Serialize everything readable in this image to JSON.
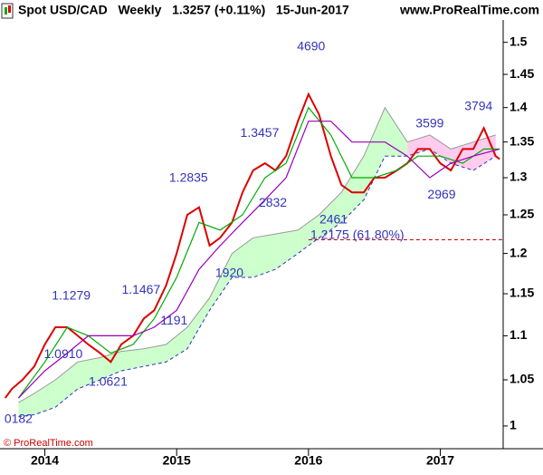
{
  "chart_data": {
    "type": "line",
    "title": "Spot USD/CAD   Weekly   1.3257 (+0.11%)   15-Jun-2017",
    "source": "www.ProRealTime.com",
    "footer": "© ProRealTime.com",
    "log_scale": true,
    "xlim": [
      2013.66,
      2017.47
    ],
    "xticks": [
      2014,
      2015,
      2016,
      2017
    ],
    "ylim": [
      0.98,
      1.53
    ],
    "yticks": [
      1,
      1.05,
      1.1,
      1.15,
      1.2,
      1.25,
      1.3,
      1.35,
      1.4,
      1.45,
      1.5
    ],
    "grid": false,
    "series": [
      {
        "color": "#dd0000",
        "x": [
          2013.7,
          2013.75,
          2013.83,
          2013.92,
          2014.0,
          2014.08,
          2014.17,
          2014.25,
          2014.33,
          2014.42,
          2014.5,
          2014.58,
          2014.67,
          2014.75,
          2014.83,
          2014.92,
          2015.0,
          2015.08,
          2015.17,
          2015.25,
          2015.33,
          2015.42,
          2015.5,
          2015.58,
          2015.67,
          2015.75,
          2015.83,
          2015.92,
          2016.0,
          2016.08,
          2016.17,
          2016.25,
          2016.33,
          2016.42,
          2016.5,
          2016.58,
          2016.67,
          2016.75,
          2016.83,
          2016.92,
          2017.0,
          2017.08,
          2017.17,
          2017.25,
          2017.33,
          2017.42,
          2017.45
        ],
        "values": [
          1.03,
          1.04,
          1.05,
          1.065,
          1.09,
          1.11,
          1.11,
          1.1,
          1.09,
          1.08,
          1.07,
          1.09,
          1.1,
          1.12,
          1.13,
          1.16,
          1.2,
          1.25,
          1.26,
          1.21,
          1.22,
          1.24,
          1.28,
          1.31,
          1.32,
          1.31,
          1.33,
          1.38,
          1.42,
          1.39,
          1.33,
          1.29,
          1.28,
          1.28,
          1.3,
          1.3,
          1.31,
          1.32,
          1.34,
          1.34,
          1.32,
          1.31,
          1.34,
          1.34,
          1.37,
          1.33,
          1.3257
        ]
      },
      {
        "color": "#00aa00",
        "x": [
          2013.8,
          2014.0,
          2014.17,
          2014.33,
          2014.5,
          2014.67,
          2014.83,
          2015.0,
          2015.17,
          2015.33,
          2015.5,
          2015.67,
          2015.83,
          2016.0,
          2016.17,
          2016.33,
          2016.5,
          2016.67,
          2016.83,
          2017.0,
          2017.17,
          2017.33,
          2017.45
        ],
        "values": [
          1.03,
          1.07,
          1.11,
          1.1,
          1.08,
          1.09,
          1.12,
          1.17,
          1.24,
          1.23,
          1.25,
          1.3,
          1.32,
          1.4,
          1.36,
          1.3,
          1.3,
          1.31,
          1.33,
          1.33,
          1.32,
          1.34,
          1.34
        ]
      },
      {
        "color": "#9900bb",
        "x": [
          2013.8,
          2014.0,
          2014.17,
          2014.33,
          2014.5,
          2014.67,
          2014.83,
          2015.0,
          2015.17,
          2015.33,
          2015.5,
          2015.67,
          2015.83,
          2016.0,
          2016.17,
          2016.33,
          2016.58,
          2016.75,
          2016.92,
          2017.08,
          2017.25,
          2017.45
        ],
        "values": [
          1.03,
          1.06,
          1.08,
          1.1,
          1.1,
          1.1,
          1.11,
          1.13,
          1.18,
          1.21,
          1.24,
          1.27,
          1.3,
          1.38,
          1.38,
          1.35,
          1.35,
          1.33,
          1.3,
          1.32,
          1.33,
          1.34
        ]
      }
    ],
    "cloud": {
      "x": [
        2013.8,
        2013.92,
        2014.08,
        2014.25,
        2014.42,
        2014.58,
        2014.75,
        2014.92,
        2015.08,
        2015.25,
        2015.42,
        2015.58,
        2015.75,
        2015.92,
        2016.08,
        2016.25,
        2016.42,
        2016.58,
        2016.75,
        2016.92,
        2017.08,
        2017.25,
        2017.42
      ],
      "lower": [
        1.01,
        1.012,
        1.02,
        1.04,
        1.05,
        1.06,
        1.065,
        1.07,
        1.085,
        1.13,
        1.17,
        1.17,
        1.18,
        1.2,
        1.22,
        1.24,
        1.27,
        1.33,
        1.33,
        1.34,
        1.32,
        1.31,
        1.33
      ],
      "upper": [
        1.025,
        1.035,
        1.05,
        1.07,
        1.075,
        1.082,
        1.085,
        1.09,
        1.11,
        1.145,
        1.2,
        1.22,
        1.225,
        1.23,
        1.25,
        1.28,
        1.33,
        1.4,
        1.35,
        1.36,
        1.34,
        1.35,
        1.36
      ],
      "fill_colors": [
        "#ccffcc",
        "#ccffcc",
        "#ccffcc",
        "#ccffcc",
        "#ccffcc",
        "#ccffcc",
        "#ccffcc",
        "#ccffcc",
        "#ccffcc",
        "#ccffcc",
        "#ccffcc",
        "#ccffcc",
        "#ccffcc",
        "#ccffcc",
        "#ccffcc",
        "#ccffcc",
        "#ccffcc",
        "#ccffcc",
        "#ffccee",
        "#ffccee",
        "#ffccee",
        "#ffccee"
      ],
      "lower_color": "#3333bb",
      "upper_color": "#999999"
    },
    "level": {
      "value": 1.2175,
      "from": 2016.0,
      "color": "#cc0000"
    },
    "annotations": [
      {
        "text": "4690",
        "x": 2016.02,
        "y": 1.493,
        "color": "#3333bb"
      },
      {
        "text": "1.3457",
        "x": 2015.63,
        "y": 1.362,
        "color": "#3333bb"
      },
      {
        "text": "1.2835",
        "x": 2015.09,
        "y": 1.299,
        "color": "#3333bb"
      },
      {
        "text": "2832",
        "x": 2015.73,
        "y": 1.265,
        "color": "#3333bb"
      },
      {
        "text": "2461",
        "x": 2016.19,
        "y": 1.243,
        "color": "#3333bb"
      },
      {
        "text": "1.2175 (61.80%)",
        "x": 2016.37,
        "y": 1.223,
        "color": "#cc0000"
      },
      {
        "text": "1920",
        "x": 2015.4,
        "y": 1.175,
        "color": "#3333bb"
      },
      {
        "text": "1.1467",
        "x": 2014.73,
        "y": 1.154,
        "color": "#3333bb"
      },
      {
        "text": "1.1279",
        "x": 2014.2,
        "y": 1.147,
        "color": "#3333bb"
      },
      {
        "text": "1191",
        "x": 2014.98,
        "y": 1.117,
        "color": "#3333bb"
      },
      {
        "text": "1.0910",
        "x": 2014.14,
        "y": 1.078,
        "color": "#3333bb"
      },
      {
        "text": "1.0621",
        "x": 2014.48,
        "y": 1.047,
        "color": "#3333bb"
      },
      {
        "text": "0182",
        "x": 2013.8,
        "y": 1.007,
        "color": "#3333bb"
      },
      {
        "text": "3599",
        "x": 2016.92,
        "y": 1.376,
        "color": "#3333bb"
      },
      {
        "text": "3794",
        "x": 2017.29,
        "y": 1.401,
        "color": "#3333bb"
      },
      {
        "text": "2969",
        "x": 2017.01,
        "y": 1.276,
        "color": "#3333bb"
      }
    ]
  }
}
